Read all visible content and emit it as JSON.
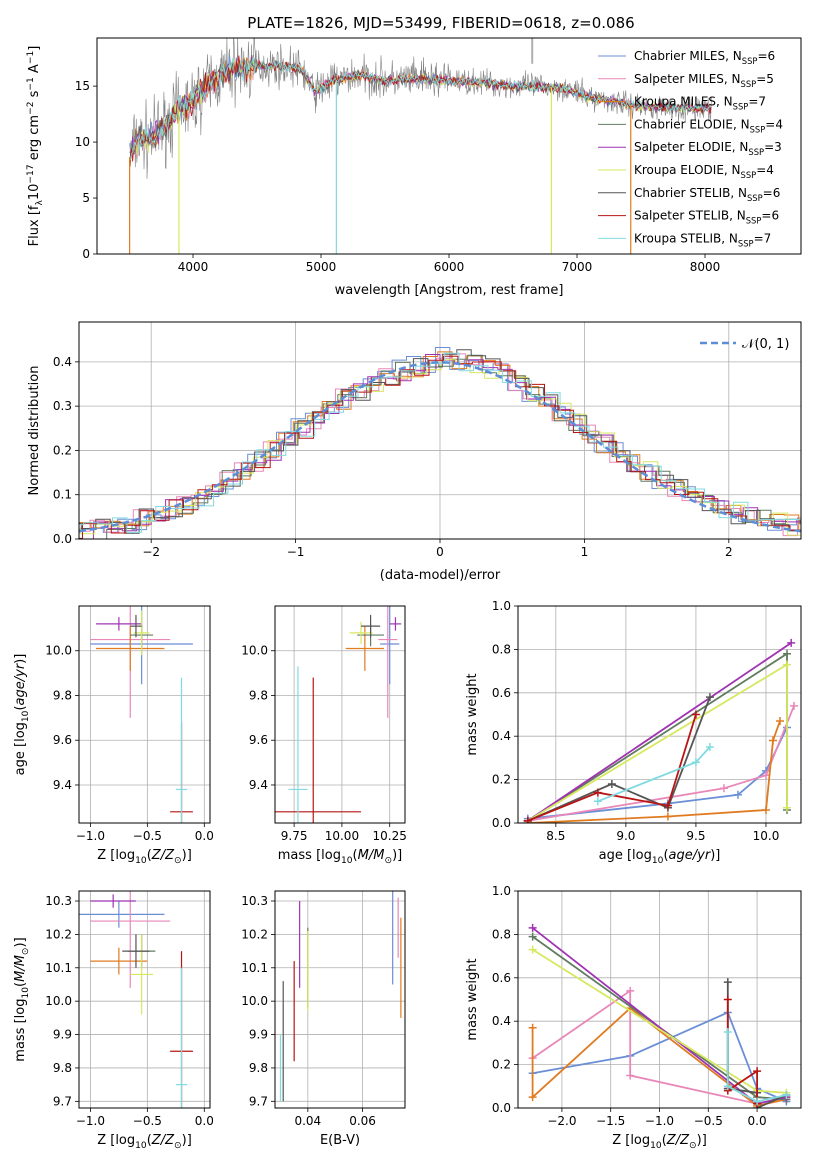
{
  "figure": {
    "title": "PLATE=1826, MJD=53499, FIBERID=0618, z=0.086"
  },
  "series": [
    {
      "name": "Chabrier MILES",
      "nssp": "6",
      "color": "#6b8fd6"
    },
    {
      "name": "Salpeter MILES",
      "nssp": "5",
      "color": "#e887b8"
    },
    {
      "name": "Kroupa MILES",
      "nssp": "7",
      "color": "#e07b20"
    },
    {
      "name": "Chabrier ELODIE",
      "nssp": "4",
      "color": "#607b60"
    },
    {
      "name": "Salpeter ELODIE",
      "nssp": "3",
      "color": "#a033b3"
    },
    {
      "name": "Kroupa ELODIE",
      "nssp": "4",
      "color": "#d7e860"
    },
    {
      "name": "Chabrier STELIB",
      "nssp": "6",
      "color": "#555555"
    },
    {
      "name": "Salpeter STELIB",
      "nssp": "6",
      "color": "#b81414"
    },
    {
      "name": "Kroupa STELIB",
      "nssp": "7",
      "color": "#80dbe0"
    }
  ],
  "chart_data": [
    {
      "id": "spectrum",
      "type": "line",
      "xlabel": "wavelength [Angstrom, rest frame]",
      "ylabel": "Flux [f_λ 10^-17 erg cm^-2 s^-1 A^-1]",
      "xlim": [
        3250,
        8750
      ],
      "ylim": [
        0,
        19.3
      ],
      "xticks": [
        4000,
        5000,
        6000,
        7000,
        8000
      ],
      "yticks": [
        0,
        5,
        10,
        15
      ],
      "grid": false,
      "legend": "top-right",
      "data_color": "#808080",
      "continuum": {
        "x": [
          3500,
          3550,
          3700,
          3900,
          4000,
          4100,
          4300,
          4500,
          4700,
          4850,
          4950,
          5100,
          5300,
          5500,
          5700,
          5900,
          6100,
          6300,
          6500,
          6700,
          6900,
          7100,
          7300,
          7500,
          7700,
          7900,
          8050
        ],
        "y": [
          8.5,
          10,
          10.5,
          13,
          13.5,
          15,
          16.5,
          16.8,
          16.8,
          16.5,
          14.5,
          15.5,
          16,
          15.5,
          15.6,
          15.6,
          15.4,
          15.3,
          15,
          15,
          14.8,
          14,
          13.6,
          13.2,
          13.1,
          13,
          13.0
        ]
      }
    },
    {
      "id": "residuals",
      "type": "histogram",
      "xlabel": "(data-model)/error",
      "ylabel": "Normed distribution",
      "xlim": [
        -2.5,
        2.5
      ],
      "ylim": [
        0,
        0.49
      ],
      "xticks": [
        -2,
        -1,
        0,
        1,
        2
      ],
      "yticks": [
        0.0,
        0.1,
        0.2,
        0.3,
        0.4
      ],
      "grid": true,
      "legend": "top-right",
      "legend_label": "𝒩(0, 1)",
      "gaussian_color": "#5b8ed6"
    },
    {
      "id": "age-vs-Z",
      "type": "scatter",
      "xlabel": "Z [log10(Z/Z⊙)]",
      "ylabel": "age  [log10(age/yr)]",
      "xlim": [
        -1.1,
        0.05
      ],
      "ylim": [
        9.23,
        10.2
      ],
      "xticks": [
        -1.0,
        -0.5,
        0.0
      ],
      "yticks": [
        9.4,
        9.6,
        9.8,
        10.0
      ],
      "points": [
        {
          "x": -0.55,
          "y": 10.03,
          "xe": 0.45,
          "ye": 0.18
        },
        {
          "x": -0.65,
          "y": 10.05,
          "xe": 0.35,
          "ye": 0.35
        },
        {
          "x": -0.65,
          "y": 10.01,
          "xe": 0.3,
          "ye": 0.1
        },
        {
          "x": -0.55,
          "y": 10.07,
          "xe": 0.1,
          "ye": 0.05
        },
        {
          "x": -0.75,
          "y": 10.12,
          "xe": 0.2,
          "ye": 0.03
        },
        {
          "x": -0.55,
          "y": 10.08,
          "xe": 0.07,
          "ye": 0.1
        },
        {
          "x": -0.6,
          "y": 10.11,
          "xe": 0.05,
          "ye": 0.05
        },
        {
          "x": -0.2,
          "y": 9.28,
          "xe": 0.1,
          "ye": 0.4
        },
        {
          "x": -0.2,
          "y": 9.38,
          "xe": 0.05,
          "ye": 0.5
        }
      ]
    },
    {
      "id": "age-vs-mass",
      "type": "scatter",
      "xlabel": "mass [log10(M/M⊙)]",
      "ylabel": "",
      "xlim": [
        9.65,
        10.33
      ],
      "ylim": [
        9.23,
        10.2
      ],
      "xticks": [
        9.75,
        10.0,
        10.25
      ],
      "yticks": [
        9.4,
        9.6,
        9.8,
        10.0
      ],
      "points": [
        {
          "x": 10.25,
          "y": 10.03,
          "xe": 0.05,
          "ye": 0.18
        },
        {
          "x": 10.24,
          "y": 10.05,
          "xe": 0.05,
          "ye": 0.35
        },
        {
          "x": 10.12,
          "y": 10.01,
          "xe": 0.1,
          "ye": 0.1
        },
        {
          "x": 10.15,
          "y": 10.07,
          "xe": 0.07,
          "ye": 0.05
        },
        {
          "x": 10.28,
          "y": 10.12,
          "xe": 0.03,
          "ye": 0.03
        },
        {
          "x": 10.1,
          "y": 10.08,
          "xe": 0.06,
          "ye": 0.05
        },
        {
          "x": 10.15,
          "y": 10.11,
          "xe": 0.05,
          "ye": 0.05
        },
        {
          "x": 9.85,
          "y": 9.28,
          "xe": 0.25,
          "ye": 0.6
        },
        {
          "x": 9.77,
          "y": 9.38,
          "xe": 0.05,
          "ye": 0.55
        }
      ]
    },
    {
      "id": "weight-vs-age",
      "type": "line",
      "xlabel": "age  [log10(age/yr)]",
      "ylabel": "mass weight",
      "xlim": [
        8.23,
        10.25
      ],
      "ylim": [
        0,
        1.0
      ],
      "xticks": [
        8.5,
        9.0,
        9.5,
        10.0
      ],
      "yticks": [
        0.0,
        0.2,
        0.4,
        0.6,
        0.8,
        1.0
      ],
      "lines": [
        {
          "x": [
            8.3,
            9.3,
            9.8,
            10.0,
            10.15
          ],
          "y": [
            0.02,
            0.09,
            0.13,
            0.24,
            0.44
          ]
        },
        {
          "x": [
            8.3,
            9.7,
            10.0,
            10.2
          ],
          "y": [
            0.01,
            0.16,
            0.22,
            0.54
          ]
        },
        {
          "x": [
            8.3,
            9.3,
            10.0,
            10.05,
            10.1
          ],
          "y": [
            0.0,
            0.03,
            0.06,
            0.38,
            0.47
          ]
        },
        {
          "x": [
            8.3,
            10.15,
            10.15
          ],
          "y": [
            0.01,
            0.78,
            0.06
          ]
        },
        {
          "x": [
            8.3,
            10.18
          ],
          "y": [
            0.01,
            0.83
          ]
        },
        {
          "x": [
            8.3,
            10.15,
            10.15
          ],
          "y": [
            0.01,
            0.73,
            0.07
          ]
        },
        {
          "x": [
            8.3,
            8.9,
            9.3,
            9.6
          ],
          "y": [
            0.01,
            0.18,
            0.07,
            0.58
          ]
        },
        {
          "x": [
            8.3,
            8.8,
            9.3,
            9.5
          ],
          "y": [
            0.01,
            0.14,
            0.08,
            0.5
          ]
        },
        {
          "x": [
            8.8,
            9.5,
            9.6
          ],
          "y": [
            0.1,
            0.28,
            0.35
          ]
        }
      ]
    },
    {
      "id": "mass-vs-Z",
      "type": "scatter",
      "xlabel": "Z [log10(Z/Z⊙)]",
      "ylabel": "mass [log10(M/M⊙)]",
      "xlim": [
        -1.1,
        0.05
      ],
      "ylim": [
        9.68,
        10.33
      ],
      "xticks": [
        -1.0,
        -0.5,
        0.0
      ],
      "yticks": [
        9.7,
        9.8,
        9.9,
        10.0,
        10.1,
        10.2,
        10.3
      ],
      "points": [
        {
          "x": -0.75,
          "y": 10.26,
          "xe": 0.4,
          "ye": 0.04
        },
        {
          "x": -0.65,
          "y": 10.24,
          "xe": 0.35,
          "ye": 0.2
        },
        {
          "x": -0.75,
          "y": 10.12,
          "xe": 0.25,
          "ye": 0.04
        },
        {
          "x": -0.55,
          "y": 10.15,
          "xe": 0.12,
          "ye": 0.05
        },
        {
          "x": -0.8,
          "y": 10.3,
          "xe": 0.2,
          "ye": 0.02
        },
        {
          "x": -0.55,
          "y": 10.08,
          "xe": 0.1,
          "ye": 0.12
        },
        {
          "x": -0.6,
          "y": 10.15,
          "xe": 0.12,
          "ye": 0.05
        },
        {
          "x": -0.2,
          "y": 9.85,
          "xe": 0.1,
          "ye": 0.3
        },
        {
          "x": -0.2,
          "y": 9.75,
          "xe": 0.05,
          "ye": 0.35
        }
      ]
    },
    {
      "id": "mass-vs-ebv",
      "type": "scatter",
      "xlabel": "E(B-V)",
      "ylabel": "",
      "xlim": [
        0.028,
        0.0755
      ],
      "ylim": [
        9.68,
        10.33
      ],
      "xticks": [
        0.04,
        0.06
      ],
      "yticks": [
        9.7,
        9.8,
        9.9,
        10.0,
        10.1,
        10.2,
        10.3
      ],
      "points": [
        {
          "x": 0.071,
          "y": 10.19,
          "xe": 0,
          "ye": 0.14
        },
        {
          "x": 0.073,
          "y": 10.22,
          "xe": 0,
          "ye": 0.09
        },
        {
          "x": 0.074,
          "y": 10.1,
          "xe": 0,
          "ye": 0.15
        },
        {
          "x": 0.04,
          "y": 10.1,
          "xe": 0,
          "ye": 0.12
        },
        {
          "x": 0.037,
          "y": 10.17,
          "xe": 0,
          "ye": 0.13
        },
        {
          "x": 0.04,
          "y": 10.09,
          "xe": 0,
          "ye": 0.12
        },
        {
          "x": 0.031,
          "y": 9.88,
          "xe": 0,
          "ye": 0.18
        },
        {
          "x": 0.035,
          "y": 9.97,
          "xe": 0,
          "ye": 0.15
        },
        {
          "x": 0.03,
          "y": 9.8,
          "xe": 0,
          "ye": 0.1
        }
      ]
    },
    {
      "id": "weight-vs-Z",
      "type": "line",
      "xlabel": "Z [log10(Z/Z⊙)]",
      "ylabel": "mass weight",
      "xlim": [
        -2.45,
        0.45
      ],
      "ylim": [
        0,
        1.0
      ],
      "xticks": [
        -2.0,
        -1.5,
        -1.0,
        -0.5,
        0.0
      ],
      "yticks": [
        0.0,
        0.2,
        0.4,
        0.6,
        0.8,
        1.0
      ],
      "lines": [
        {
          "x": [
            -2.3,
            -1.3,
            -0.3,
            0.0,
            0.3
          ],
          "y": [
            0.16,
            0.24,
            0.44,
            0.09,
            0.03
          ]
        },
        {
          "x": [
            -2.3,
            -1.3,
            -1.3,
            0.0,
            0.3
          ],
          "y": [
            0.23,
            0.54,
            0.15,
            0.02,
            0.05
          ]
        },
        {
          "x": [
            -2.3,
            -2.3,
            -1.3,
            0.0,
            0.3
          ],
          "y": [
            0.37,
            0.05,
            0.46,
            0.01,
            0.04
          ]
        },
        {
          "x": [
            -2.3,
            0.0,
            0.3
          ],
          "y": [
            0.79,
            0.05,
            0.04
          ]
        },
        {
          "x": [
            -2.3,
            0.0,
            0.3
          ],
          "y": [
            0.83,
            0.02,
            0.05
          ]
        },
        {
          "x": [
            -2.3,
            0.0,
            0.3
          ],
          "y": [
            0.73,
            0.08,
            0.07
          ]
        },
        {
          "x": [
            -0.3,
            -0.3,
            0.0,
            0.0,
            0.3
          ],
          "y": [
            0.58,
            0.09,
            0.07,
            0.0,
            0.06
          ]
        },
        {
          "x": [
            -0.3,
            -0.3,
            0.0,
            0.0
          ],
          "y": [
            0.5,
            0.08,
            0.17,
            0.02
          ]
        },
        {
          "x": [
            -0.3,
            -0.3,
            0.0,
            0.3
          ],
          "y": [
            0.35,
            0.1,
            0.03,
            0.06
          ]
        }
      ]
    }
  ]
}
